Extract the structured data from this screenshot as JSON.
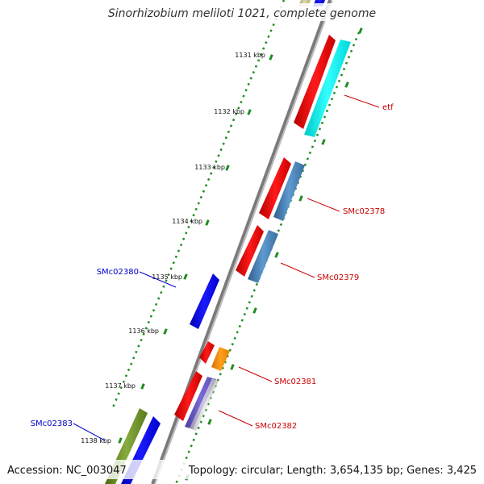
{
  "title": "Sinorhizobium meliloti 1021, complete genome",
  "accession": "Accession: NC_003047",
  "topology": "Topology: circular; Length: 3,654,135 bp; Genes: 3,425",
  "colors": {
    "backbone": "#7a7a7a",
    "ticks": "#1e8c1e",
    "forward_label": "#cc0000",
    "reverse_label": "#0000cc"
  },
  "tick_labels": [
    "1131 kbp",
    "1132 kbp",
    "1133 kbp",
    "1134 kbp",
    "1135 kbp",
    "1136 kbp",
    "1137 kbp",
    "1138 kbp"
  ],
  "gene_labels": {
    "etf": "etf",
    "SMc02378": "SMc02378",
    "SMc02379": "SMc02379",
    "SMc02380": "SMc02380",
    "SMc02381": "SMc02381",
    "SMc02382": "SMc02382",
    "SMc02383": "SMc02383"
  }
}
